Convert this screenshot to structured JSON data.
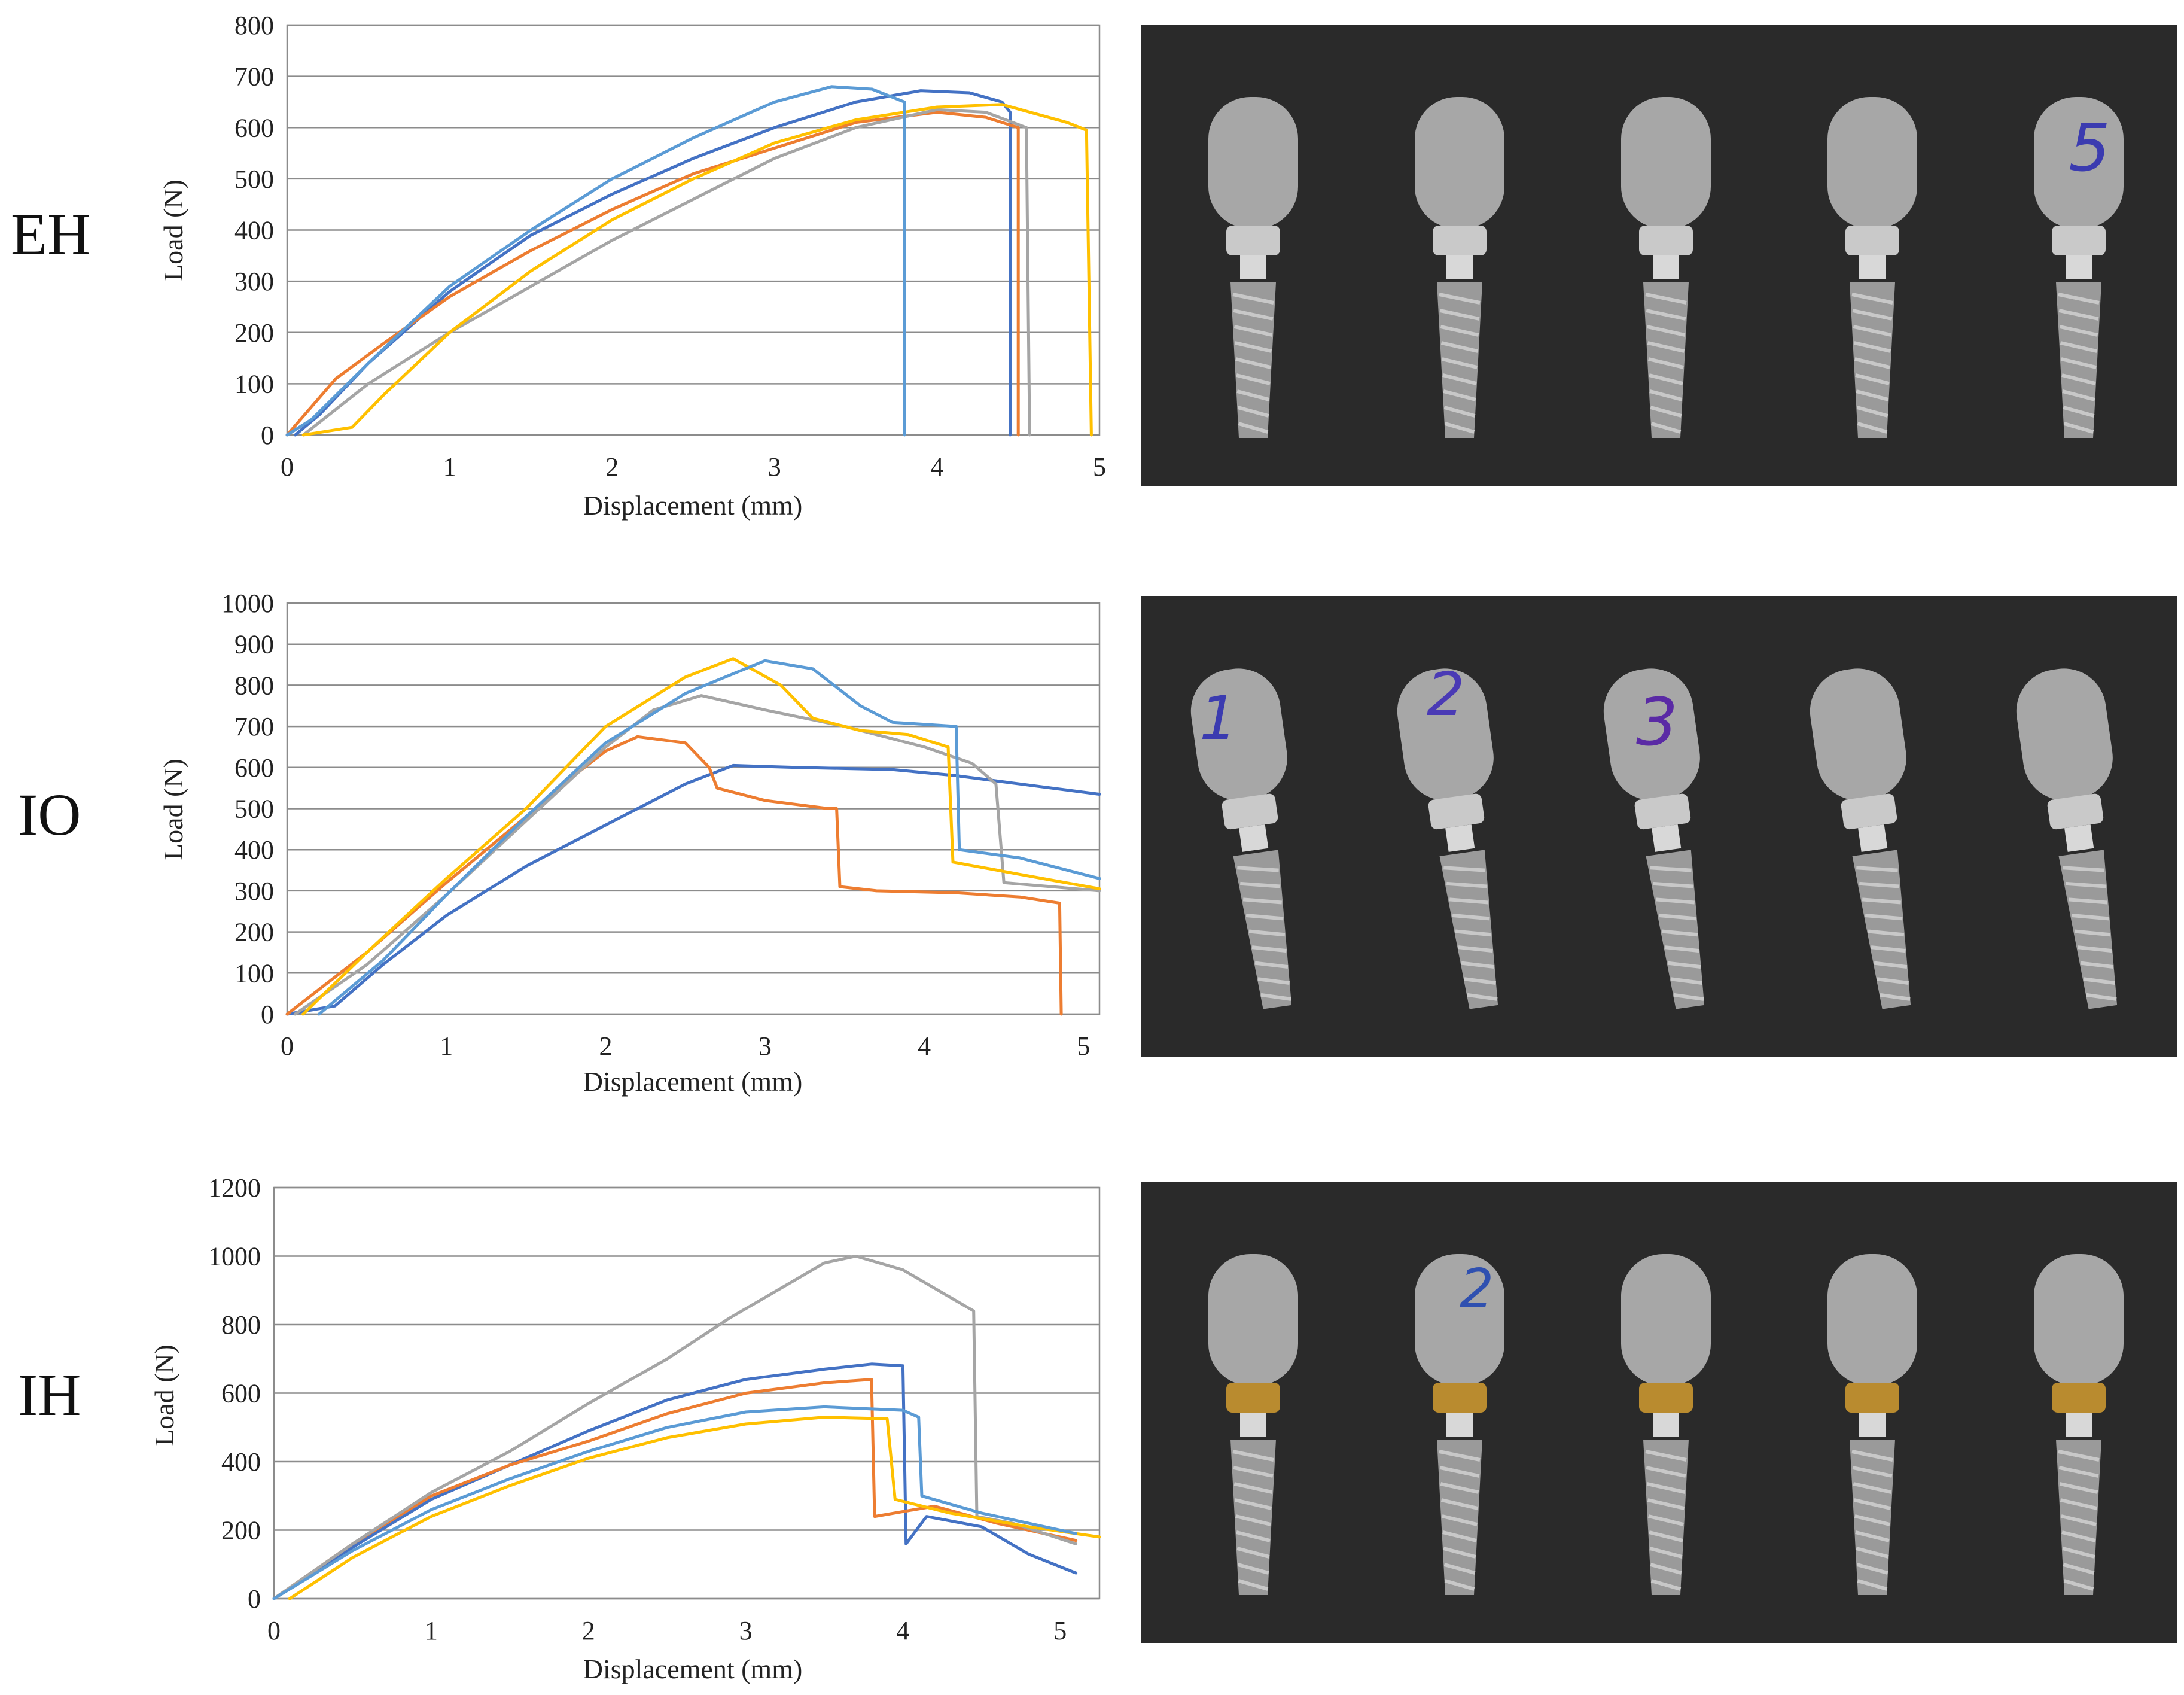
{
  "colors": {
    "s1": "#4472C4",
    "s2": "#ED7D31",
    "s3": "#A5A5A5",
    "s4": "#FFC000",
    "s5": "#5B9BD5",
    "grid": "#8c8c8c",
    "photo_background": "#2a2a2a",
    "implant_metal": "#a7a7a7",
    "gold_collar": "#b98b2f"
  },
  "photo_labels": {
    "eh": [
      "5"
    ],
    "io": [
      "1",
      "2",
      "3"
    ],
    "ih": [
      "2"
    ]
  },
  "chart_data": [
    {
      "type": "line",
      "row_label": "EH",
      "title": "",
      "xlabel": "Displacement (mm)",
      "ylabel": "Load (N)",
      "xlim": [
        0,
        5
      ],
      "ylim": [
        0,
        800
      ],
      "xticks": [
        0,
        1,
        2,
        3,
        4,
        5
      ],
      "yticks": [
        0,
        100,
        200,
        300,
        400,
        500,
        600,
        700,
        800
      ],
      "grid": "horizontal",
      "legend": "none",
      "series": [
        {
          "color": "#4472C4",
          "points": [
            [
              0.05,
              0
            ],
            [
              0.2,
              40
            ],
            [
              0.5,
              140
            ],
            [
              1.0,
              280
            ],
            [
              1.5,
              390
            ],
            [
              2.0,
              470
            ],
            [
              2.5,
              540
            ],
            [
              3.0,
              600
            ],
            [
              3.5,
              650
            ],
            [
              3.9,
              672
            ],
            [
              4.2,
              668
            ],
            [
              4.4,
              650
            ],
            [
              4.45,
              630
            ],
            [
              4.45,
              0
            ]
          ]
        },
        {
          "color": "#ED7D31",
          "points": [
            [
              0,
              0
            ],
            [
              0.3,
              110
            ],
            [
              0.6,
              180
            ],
            [
              1.0,
              270
            ],
            [
              1.5,
              360
            ],
            [
              2.0,
              440
            ],
            [
              2.5,
              510
            ],
            [
              3.0,
              560
            ],
            [
              3.5,
              610
            ],
            [
              4.0,
              630
            ],
            [
              4.3,
              620
            ],
            [
              4.5,
              600
            ],
            [
              4.5,
              0
            ]
          ]
        },
        {
          "color": "#A5A5A5",
          "points": [
            [
              0.1,
              0
            ],
            [
              0.5,
              100
            ],
            [
              1.0,
              200
            ],
            [
              1.5,
              290
            ],
            [
              2.0,
              380
            ],
            [
              2.5,
              460
            ],
            [
              3.0,
              540
            ],
            [
              3.5,
              600
            ],
            [
              4.0,
              635
            ],
            [
              4.3,
              630
            ],
            [
              4.55,
              600
            ],
            [
              4.57,
              0
            ]
          ]
        },
        {
          "color": "#FFC000",
          "points": [
            [
              0.1,
              0
            ],
            [
              0.4,
              15
            ],
            [
              0.6,
              80
            ],
            [
              1.0,
              200
            ],
            [
              1.5,
              320
            ],
            [
              2.0,
              420
            ],
            [
              2.5,
              500
            ],
            [
              3.0,
              570
            ],
            [
              3.5,
              615
            ],
            [
              4.0,
              640
            ],
            [
              4.4,
              645
            ],
            [
              4.8,
              610
            ],
            [
              4.92,
              595
            ],
            [
              4.95,
              0
            ]
          ]
        },
        {
          "color": "#5B9BD5",
          "points": [
            [
              0,
              0
            ],
            [
              0.15,
              30
            ],
            [
              0.5,
              140
            ],
            [
              1.0,
              290
            ],
            [
              1.5,
              400
            ],
            [
              2.0,
              500
            ],
            [
              2.5,
              580
            ],
            [
              3.0,
              650
            ],
            [
              3.35,
              680
            ],
            [
              3.6,
              675
            ],
            [
              3.8,
              650
            ],
            [
              3.8,
              0
            ]
          ]
        }
      ]
    },
    {
      "type": "line",
      "row_label": "IO",
      "title": "",
      "xlabel": "Displacement (mm)",
      "ylabel": "Load (N)",
      "xlim": [
        0,
        5.1
      ],
      "ylim": [
        0,
        1000
      ],
      "xticks": [
        0,
        1,
        2,
        3,
        4,
        5
      ],
      "yticks": [
        0,
        100,
        200,
        300,
        400,
        500,
        600,
        700,
        800,
        900,
        1000
      ],
      "grid": "horizontal",
      "legend": "none",
      "series": [
        {
          "color": "#4472C4",
          "points": [
            [
              0,
              0
            ],
            [
              0.3,
              20
            ],
            [
              0.6,
              120
            ],
            [
              1.0,
              240
            ],
            [
              1.5,
              360
            ],
            [
              2.0,
              460
            ],
            [
              2.5,
              560
            ],
            [
              2.8,
              605
            ],
            [
              3.2,
              600
            ],
            [
              3.8,
              595
            ],
            [
              4.2,
              580
            ],
            [
              4.6,
              560
            ],
            [
              5.1,
              535
            ]
          ]
        },
        {
          "color": "#ED7D31",
          "points": [
            [
              0,
              0
            ],
            [
              0.5,
              150
            ],
            [
              1.0,
              320
            ],
            [
              1.5,
              480
            ],
            [
              1.8,
              580
            ],
            [
              2.0,
              640
            ],
            [
              2.2,
              675
            ],
            [
              2.5,
              660
            ],
            [
              2.65,
              600
            ],
            [
              2.7,
              550
            ],
            [
              3.0,
              520
            ],
            [
              3.4,
              500
            ],
            [
              3.45,
              500
            ],
            [
              3.47,
              310
            ],
            [
              3.7,
              300
            ],
            [
              4.2,
              295
            ],
            [
              4.6,
              285
            ],
            [
              4.85,
              270
            ],
            [
              4.86,
              0
            ]
          ]
        },
        {
          "color": "#A5A5A5",
          "points": [
            [
              0.05,
              0
            ],
            [
              0.5,
              120
            ],
            [
              1.0,
              290
            ],
            [
              1.5,
              470
            ],
            [
              2.0,
              650
            ],
            [
              2.3,
              740
            ],
            [
              2.6,
              775
            ],
            [
              3.0,
              740
            ],
            [
              3.5,
              700
            ],
            [
              4.0,
              650
            ],
            [
              4.3,
              610
            ],
            [
              4.45,
              560
            ],
            [
              4.5,
              320
            ],
            [
              4.8,
              310
            ],
            [
              5.1,
              300
            ]
          ]
        },
        {
          "color": "#FFC000",
          "points": [
            [
              0.1,
              0
            ],
            [
              0.5,
              150
            ],
            [
              1.0,
              330
            ],
            [
              1.5,
              500
            ],
            [
              2.0,
              700
            ],
            [
              2.5,
              820
            ],
            [
              2.8,
              865
            ],
            [
              3.1,
              800
            ],
            [
              3.3,
              720
            ],
            [
              3.6,
              690
            ],
            [
              3.9,
              680
            ],
            [
              4.15,
              650
            ],
            [
              4.18,
              370
            ],
            [
              4.6,
              340
            ],
            [
              5.1,
              305
            ]
          ]
        },
        {
          "color": "#5B9BD5",
          "points": [
            [
              0.2,
              0
            ],
            [
              0.6,
              130
            ],
            [
              1.0,
              290
            ],
            [
              1.5,
              480
            ],
            [
              2.0,
              660
            ],
            [
              2.5,
              780
            ],
            [
              3.0,
              860
            ],
            [
              3.3,
              840
            ],
            [
              3.6,
              750
            ],
            [
              3.8,
              710
            ],
            [
              4.2,
              700
            ],
            [
              4.22,
              400
            ],
            [
              4.6,
              380
            ],
            [
              5.1,
              330
            ]
          ]
        }
      ]
    },
    {
      "type": "line",
      "row_label": "IH",
      "title": "",
      "xlabel": "Displacement (mm)",
      "ylabel": "Load (N)",
      "xlim": [
        0,
        5.25
      ],
      "ylim": [
        0,
        1200
      ],
      "xticks": [
        0,
        1,
        2,
        3,
        4,
        5
      ],
      "yticks": [
        0,
        200,
        400,
        600,
        800,
        1000,
        1200
      ],
      "grid": "horizontal",
      "legend": "none",
      "series": [
        {
          "color": "#4472C4",
          "points": [
            [
              0,
              0
            ],
            [
              0.5,
              150
            ],
            [
              1.0,
              290
            ],
            [
              1.5,
              390
            ],
            [
              2.0,
              490
            ],
            [
              2.5,
              580
            ],
            [
              3.0,
              640
            ],
            [
              3.5,
              670
            ],
            [
              3.8,
              685
            ],
            [
              4.0,
              680
            ],
            [
              4.02,
              160
            ],
            [
              4.15,
              240
            ],
            [
              4.5,
              210
            ],
            [
              4.8,
              130
            ],
            [
              5.1,
              75
            ]
          ]
        },
        {
          "color": "#ED7D31",
          "points": [
            [
              0,
              0
            ],
            [
              0.5,
              160
            ],
            [
              1.0,
              300
            ],
            [
              1.5,
              390
            ],
            [
              2.0,
              460
            ],
            [
              2.5,
              540
            ],
            [
              3.0,
              600
            ],
            [
              3.5,
              630
            ],
            [
              3.8,
              640
            ],
            [
              3.82,
              240
            ],
            [
              4.2,
              270
            ],
            [
              4.6,
              220
            ],
            [
              5.1,
              170
            ]
          ]
        },
        {
          "color": "#A5A5A5",
          "points": [
            [
              0,
              0
            ],
            [
              0.5,
              160
            ],
            [
              1.0,
              310
            ],
            [
              1.5,
              430
            ],
            [
              2.0,
              570
            ],
            [
              2.5,
              700
            ],
            [
              2.9,
              820
            ],
            [
              3.2,
              900
            ],
            [
              3.5,
              980
            ],
            [
              3.7,
              1000
            ],
            [
              4.0,
              960
            ],
            [
              4.3,
              880
            ],
            [
              4.45,
              840
            ],
            [
              4.47,
              240
            ],
            [
              4.7,
              220
            ],
            [
              5.1,
              160
            ]
          ]
        },
        {
          "color": "#FFC000",
          "points": [
            [
              0.1,
              0
            ],
            [
              0.5,
              120
            ],
            [
              1.0,
              240
            ],
            [
              1.5,
              330
            ],
            [
              2.0,
              410
            ],
            [
              2.5,
              470
            ],
            [
              3.0,
              510
            ],
            [
              3.5,
              530
            ],
            [
              3.9,
              525
            ],
            [
              3.95,
              290
            ],
            [
              4.3,
              250
            ],
            [
              4.8,
              210
            ],
            [
              5.25,
              180
            ]
          ]
        },
        {
          "color": "#5B9BD5",
          "points": [
            [
              0,
              0
            ],
            [
              0.5,
              140
            ],
            [
              1.0,
              260
            ],
            [
              1.5,
              350
            ],
            [
              2.0,
              430
            ],
            [
              2.5,
              500
            ],
            [
              3.0,
              545
            ],
            [
              3.5,
              560
            ],
            [
              4.0,
              550
            ],
            [
              4.1,
              530
            ],
            [
              4.12,
              300
            ],
            [
              4.5,
              250
            ],
            [
              5.1,
              190
            ]
          ]
        }
      ]
    }
  ]
}
